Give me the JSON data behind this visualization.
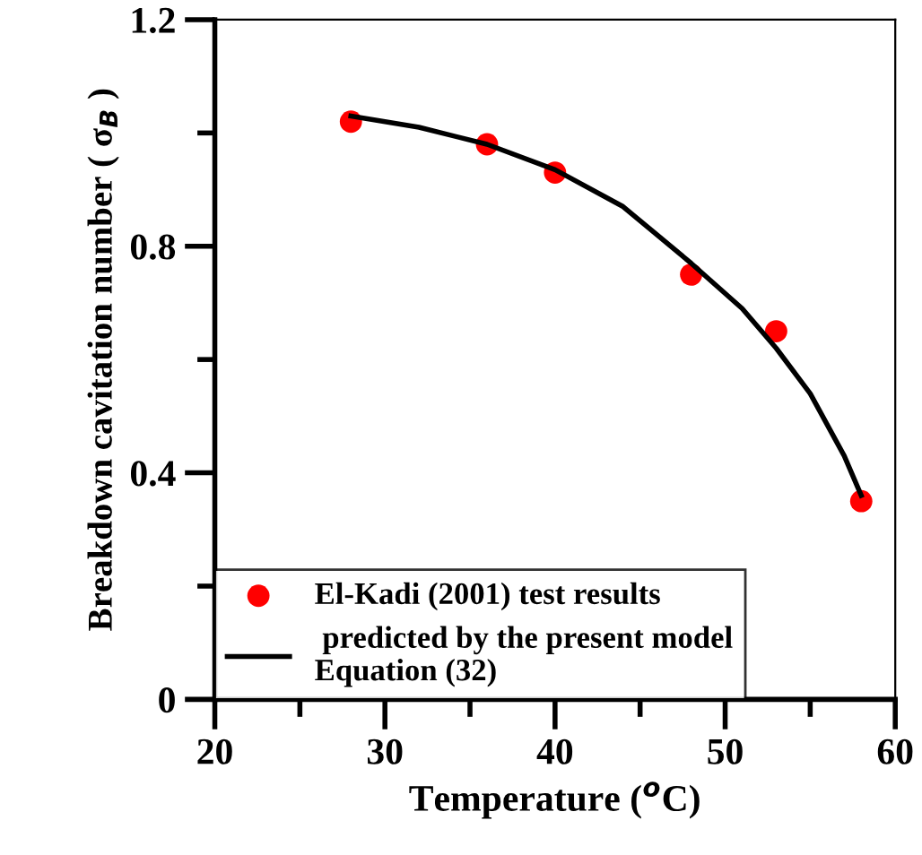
{
  "chart_data": {
    "type": "line",
    "xlabel": "Temperature ($^{o}$C)",
    "ylabel": "Breakdown cavitation number ( σ$_{B}$ )",
    "xlim": [
      20,
      60
    ],
    "ylim": [
      0,
      1.2
    ],
    "xticks": [
      20,
      {
        "value": 25,
        "label": null
      },
      30,
      {
        "value": 35,
        "label": null
      },
      40,
      {
        "value": 45,
        "label": null
      },
      50,
      {
        "value": 55,
        "label": null
      },
      60
    ],
    "yticks": [
      0,
      {
        "value": 0.2,
        "label": null
      },
      0.4,
      {
        "value": 0.6,
        "label": null
      },
      0.8,
      {
        "value": 1.0,
        "label": null
      },
      1.2
    ],
    "grid": false,
    "legend": "bottom left",
    "series": [
      {
        "name": "El-Kadi (2001) test results",
        "type": "scatter",
        "marker": "circle",
        "color": "#ff0000",
        "x": [
          28,
          36,
          40,
          48,
          53,
          58
        ],
        "values": [
          1.02,
          0.98,
          0.93,
          0.75,
          0.65,
          0.35
        ]
      },
      {
        "name": " predicted by the present model\nEquation (32)",
        "marker": "none",
        "line_style": "solid",
        "color": "#000000",
        "x": [
          28,
          32,
          36,
          40,
          44,
          48,
          51,
          53,
          55,
          57,
          58
        ],
        "values": [
          1.03,
          1.01,
          0.98,
          0.935,
          0.87,
          0.77,
          0.69,
          0.62,
          0.54,
          0.43,
          0.36
        ]
      }
    ]
  }
}
